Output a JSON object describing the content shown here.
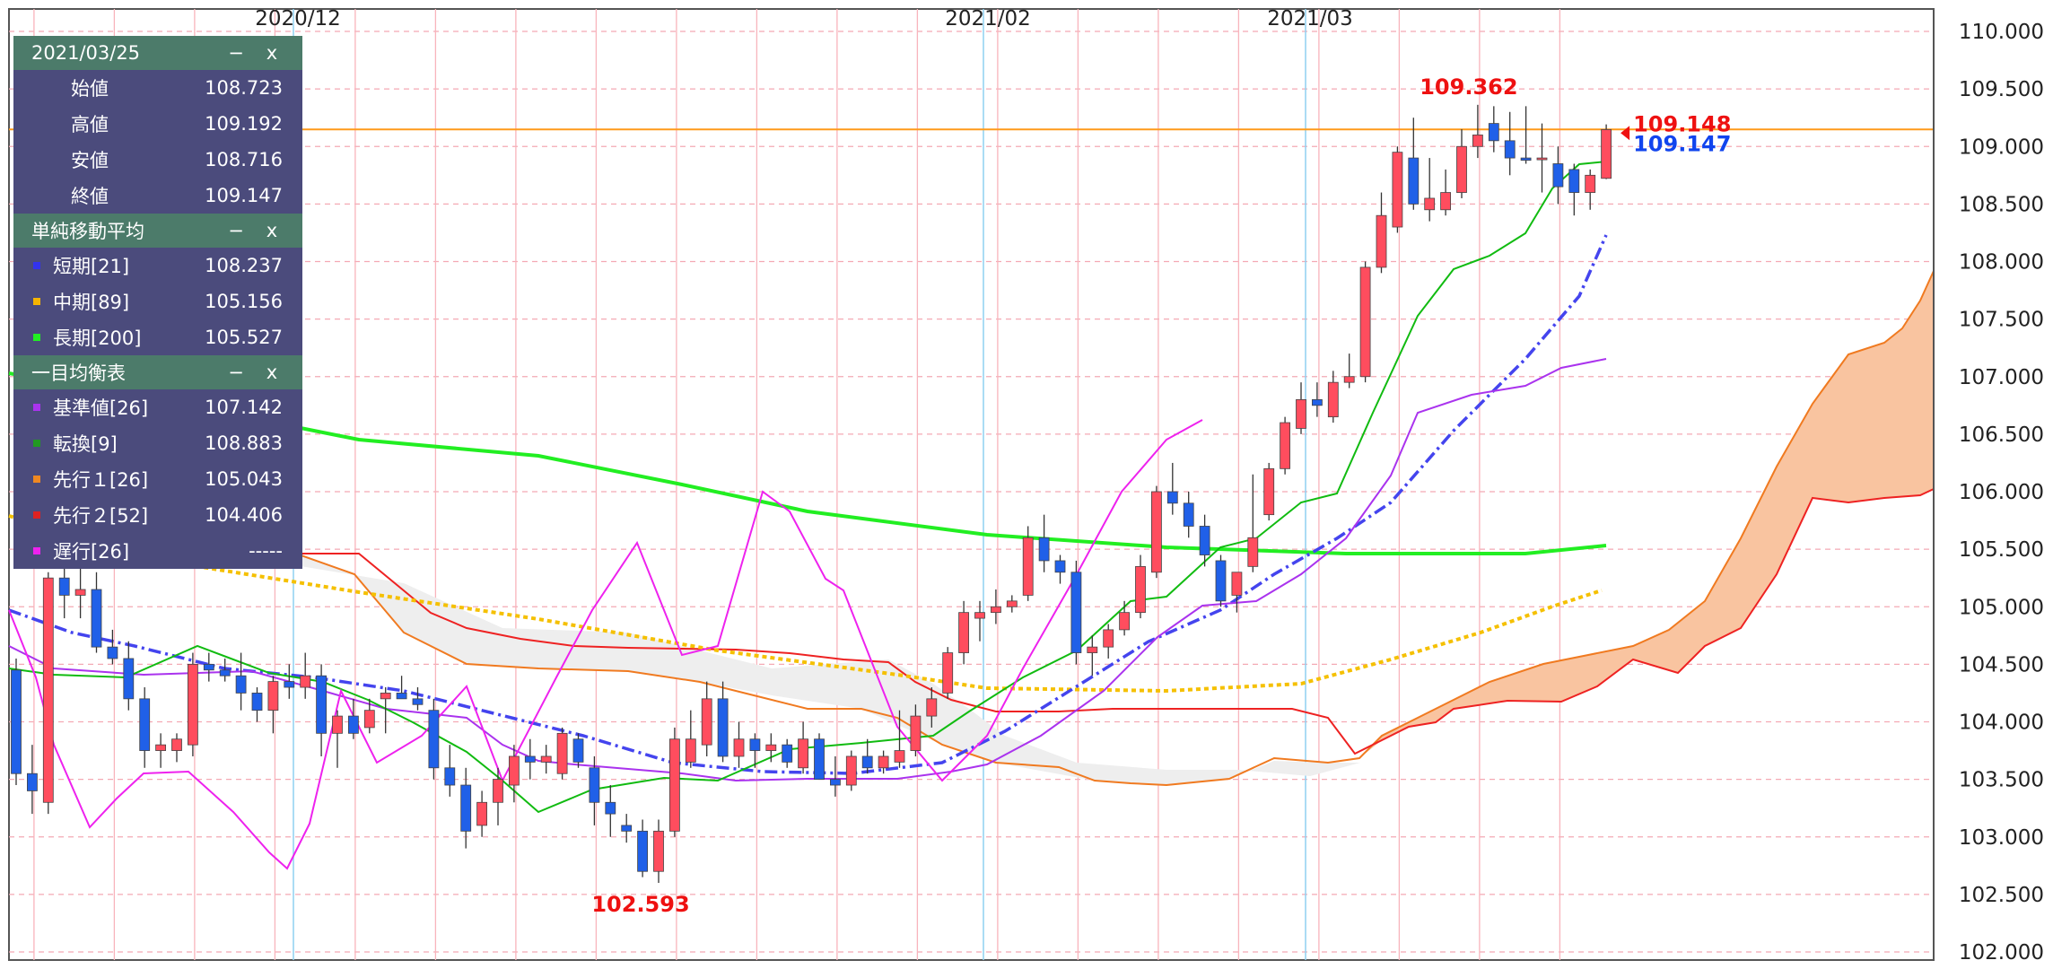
{
  "chart_data": {
    "type": "candlestick",
    "x_labels": [
      "2020/12",
      "2021/02",
      "2021/03"
    ],
    "y_ticks": [
      "110.000",
      "109.500",
      "109.000",
      "108.500",
      "108.000",
      "107.500",
      "107.000",
      "106.500",
      "106.000",
      "105.500",
      "105.000",
      "104.500",
      "104.000",
      "103.500",
      "103.000",
      "102.500",
      "102.000"
    ],
    "ylim": [
      102.0,
      110.0
    ],
    "current_price_label": "109.148",
    "current_price_label_2": "109.147",
    "high_annotation": "109.362",
    "low_annotation": "102.593",
    "hline_value": 109.148,
    "candles": [
      {
        "o": 104.45,
        "h": 104.55,
        "l": 103.45,
        "c": 103.55
      },
      {
        "o": 103.55,
        "h": 103.8,
        "l": 103.2,
        "c": 103.4
      },
      {
        "o": 103.3,
        "h": 105.3,
        "l": 103.2,
        "c": 105.25
      },
      {
        "o": 105.25,
        "h": 105.5,
        "l": 104.9,
        "c": 105.1
      },
      {
        "o": 105.1,
        "h": 105.4,
        "l": 104.9,
        "c": 105.15
      },
      {
        "o": 105.15,
        "h": 105.3,
        "l": 104.6,
        "c": 104.65
      },
      {
        "o": 104.65,
        "h": 104.8,
        "l": 104.5,
        "c": 104.55
      },
      {
        "o": 104.55,
        "h": 104.7,
        "l": 104.1,
        "c": 104.2
      },
      {
        "o": 104.2,
        "h": 104.3,
        "l": 103.6,
        "c": 103.75
      },
      {
        "o": 103.75,
        "h": 103.9,
        "l": 103.6,
        "c": 103.8
      },
      {
        "o": 103.75,
        "h": 103.9,
        "l": 103.65,
        "c": 103.85
      },
      {
        "o": 103.8,
        "h": 104.6,
        "l": 103.7,
        "c": 104.5
      },
      {
        "o": 104.5,
        "h": 104.6,
        "l": 104.35,
        "c": 104.45
      },
      {
        "o": 104.45,
        "h": 104.55,
        "l": 104.35,
        "c": 104.4
      },
      {
        "o": 104.4,
        "h": 104.6,
        "l": 104.1,
        "c": 104.25
      },
      {
        "o": 104.25,
        "h": 104.3,
        "l": 104.0,
        "c": 104.1
      },
      {
        "o": 104.1,
        "h": 104.4,
        "l": 103.9,
        "c": 104.35
      },
      {
        "o": 104.35,
        "h": 104.5,
        "l": 104.2,
        "c": 104.3
      },
      {
        "o": 104.3,
        "h": 104.6,
        "l": 104.2,
        "c": 104.4
      },
      {
        "o": 104.4,
        "h": 104.5,
        "l": 103.7,
        "c": 103.9
      },
      {
        "o": 103.9,
        "h": 104.1,
        "l": 103.6,
        "c": 104.05
      },
      {
        "o": 104.05,
        "h": 104.2,
        "l": 103.85,
        "c": 103.9
      },
      {
        "o": 103.95,
        "h": 104.2,
        "l": 103.9,
        "c": 104.1
      },
      {
        "o": 104.2,
        "h": 104.3,
        "l": 103.9,
        "c": 104.25
      },
      {
        "o": 104.25,
        "h": 104.4,
        "l": 104.2,
        "c": 104.2
      },
      {
        "o": 104.2,
        "h": 104.3,
        "l": 104.1,
        "c": 104.15
      },
      {
        "o": 104.1,
        "h": 104.2,
        "l": 103.5,
        "c": 103.6
      },
      {
        "o": 103.6,
        "h": 103.8,
        "l": 103.35,
        "c": 103.45
      },
      {
        "o": 103.45,
        "h": 103.6,
        "l": 102.9,
        "c": 103.05
      },
      {
        "o": 103.1,
        "h": 103.4,
        "l": 103.0,
        "c": 103.3
      },
      {
        "o": 103.3,
        "h": 103.6,
        "l": 103.1,
        "c": 103.5
      },
      {
        "o": 103.45,
        "h": 103.8,
        "l": 103.3,
        "c": 103.7
      },
      {
        "o": 103.7,
        "h": 103.85,
        "l": 103.5,
        "c": 103.65
      },
      {
        "o": 103.65,
        "h": 103.8,
        "l": 103.55,
        "c": 103.7
      },
      {
        "o": 103.55,
        "h": 103.95,
        "l": 103.5,
        "c": 103.9
      },
      {
        "o": 103.85,
        "h": 103.9,
        "l": 103.6,
        "c": 103.65
      },
      {
        "o": 103.6,
        "h": 103.7,
        "l": 103.1,
        "c": 103.3
      },
      {
        "o": 103.3,
        "h": 103.45,
        "l": 103.0,
        "c": 103.2
      },
      {
        "o": 103.1,
        "h": 103.2,
        "l": 102.95,
        "c": 103.05
      },
      {
        "o": 103.05,
        "h": 103.15,
        "l": 102.65,
        "c": 102.7
      },
      {
        "o": 102.7,
        "h": 103.15,
        "l": 102.6,
        "c": 103.05
      },
      {
        "o": 103.05,
        "h": 103.95,
        "l": 103.0,
        "c": 103.85
      },
      {
        "o": 103.65,
        "h": 104.1,
        "l": 103.6,
        "c": 103.85
      },
      {
        "o": 103.8,
        "h": 104.35,
        "l": 103.7,
        "c": 104.2
      },
      {
        "o": 104.2,
        "h": 104.35,
        "l": 103.65,
        "c": 103.7
      },
      {
        "o": 103.7,
        "h": 104.0,
        "l": 103.6,
        "c": 103.85
      },
      {
        "o": 103.85,
        "h": 103.9,
        "l": 103.6,
        "c": 103.75
      },
      {
        "o": 103.75,
        "h": 103.9,
        "l": 103.65,
        "c": 103.8
      },
      {
        "o": 103.8,
        "h": 103.85,
        "l": 103.6,
        "c": 103.65
      },
      {
        "o": 103.6,
        "h": 104.0,
        "l": 103.55,
        "c": 103.85
      },
      {
        "o": 103.85,
        "h": 103.9,
        "l": 103.5,
        "c": 103.5
      },
      {
        "o": 103.5,
        "h": 103.7,
        "l": 103.35,
        "c": 103.45
      },
      {
        "o": 103.45,
        "h": 103.75,
        "l": 103.4,
        "c": 103.7
      },
      {
        "o": 103.7,
        "h": 103.85,
        "l": 103.55,
        "c": 103.6
      },
      {
        "o": 103.6,
        "h": 103.75,
        "l": 103.55,
        "c": 103.7
      },
      {
        "o": 103.65,
        "h": 104.1,
        "l": 103.6,
        "c": 103.75
      },
      {
        "o": 103.75,
        "h": 104.15,
        "l": 103.7,
        "c": 104.05
      },
      {
        "o": 104.05,
        "h": 104.3,
        "l": 103.95,
        "c": 104.2
      },
      {
        "o": 104.25,
        "h": 104.65,
        "l": 104.2,
        "c": 104.6
      },
      {
        "o": 104.6,
        "h": 105.05,
        "l": 104.5,
        "c": 104.95
      },
      {
        "o": 104.9,
        "h": 105.05,
        "l": 104.7,
        "c": 104.95
      },
      {
        "o": 104.95,
        "h": 105.15,
        "l": 104.85,
        "c": 105.0
      },
      {
        "o": 105.0,
        "h": 105.1,
        "l": 104.95,
        "c": 105.05
      },
      {
        "o": 105.1,
        "h": 105.7,
        "l": 105.05,
        "c": 105.6
      },
      {
        "o": 105.6,
        "h": 105.8,
        "l": 105.3,
        "c": 105.4
      },
      {
        "o": 105.4,
        "h": 105.45,
        "l": 105.2,
        "c": 105.3
      },
      {
        "o": 105.3,
        "h": 105.4,
        "l": 104.5,
        "c": 104.6
      },
      {
        "o": 104.6,
        "h": 104.75,
        "l": 104.4,
        "c": 104.65
      },
      {
        "o": 104.65,
        "h": 104.85,
        "l": 104.55,
        "c": 104.8
      },
      {
        "o": 104.8,
        "h": 105.05,
        "l": 104.75,
        "c": 104.95
      },
      {
        "o": 104.95,
        "h": 105.45,
        "l": 104.9,
        "c": 105.35
      },
      {
        "o": 105.3,
        "h": 106.05,
        "l": 105.25,
        "c": 106.0
      },
      {
        "o": 106.0,
        "h": 106.25,
        "l": 105.8,
        "c": 105.9
      },
      {
        "o": 105.9,
        "h": 106.0,
        "l": 105.6,
        "c": 105.7
      },
      {
        "o": 105.7,
        "h": 105.8,
        "l": 105.35,
        "c": 105.45
      },
      {
        "o": 105.4,
        "h": 105.45,
        "l": 105.0,
        "c": 105.05
      },
      {
        "o": 105.1,
        "h": 105.3,
        "l": 104.95,
        "c": 105.3
      },
      {
        "o": 105.35,
        "h": 106.15,
        "l": 105.3,
        "c": 105.6
      },
      {
        "o": 105.8,
        "h": 106.25,
        "l": 105.75,
        "c": 106.2
      },
      {
        "o": 106.2,
        "h": 106.65,
        "l": 106.15,
        "c": 106.6
      },
      {
        "o": 106.55,
        "h": 106.95,
        "l": 106.5,
        "c": 106.8
      },
      {
        "o": 106.8,
        "h": 106.95,
        "l": 106.65,
        "c": 106.75
      },
      {
        "o": 106.65,
        "h": 107.05,
        "l": 106.6,
        "c": 106.95
      },
      {
        "o": 106.95,
        "h": 107.2,
        "l": 106.9,
        "c": 107.0
      },
      {
        "o": 107.0,
        "h": 108.0,
        "l": 106.95,
        "c": 107.95
      },
      {
        "o": 107.95,
        "h": 108.6,
        "l": 107.9,
        "c": 108.4
      },
      {
        "o": 108.3,
        "h": 109.0,
        "l": 108.25,
        "c": 108.95
      },
      {
        "o": 108.9,
        "h": 109.25,
        "l": 108.45,
        "c": 108.5
      },
      {
        "o": 108.45,
        "h": 108.9,
        "l": 108.35,
        "c": 108.55
      },
      {
        "o": 108.45,
        "h": 108.8,
        "l": 108.4,
        "c": 108.6
      },
      {
        "o": 108.6,
        "h": 109.15,
        "l": 108.55,
        "c": 109.0
      },
      {
        "o": 109.0,
        "h": 109.362,
        "l": 108.9,
        "c": 109.1
      },
      {
        "o": 109.2,
        "h": 109.35,
        "l": 108.95,
        "c": 109.05
      },
      {
        "o": 109.05,
        "h": 109.3,
        "l": 108.75,
        "c": 108.9
      },
      {
        "o": 108.9,
        "h": 109.35,
        "l": 108.85,
        "c": 108.88
      },
      {
        "o": 108.9,
        "h": 109.2,
        "l": 108.6,
        "c": 108.9
      },
      {
        "o": 108.85,
        "h": 109.0,
        "l": 108.5,
        "c": 108.65
      },
      {
        "o": 108.8,
        "h": 108.85,
        "l": 108.4,
        "c": 108.6
      },
      {
        "o": 108.6,
        "h": 108.8,
        "l": 108.45,
        "c": 108.75
      },
      {
        "o": 108.723,
        "h": 109.192,
        "l": 108.716,
        "c": 109.147
      }
    ]
  },
  "panel": {
    "date": "2021/03/25",
    "minimize": "−",
    "close": "x",
    "ohlc": [
      {
        "label": "始値",
        "value": "108.723"
      },
      {
        "label": "高値",
        "value": "109.192"
      },
      {
        "label": "安値",
        "value": "108.716"
      },
      {
        "label": "終値",
        "value": "109.147"
      }
    ],
    "sma_title": "単純移動平均",
    "sma": [
      {
        "label": "短期[21]",
        "value": "108.237",
        "color": "#3333ee"
      },
      {
        "label": "中期[89]",
        "value": "105.156",
        "color": "#f5b400"
      },
      {
        "label": "長期[200]",
        "value": "105.527",
        "color": "#22ee22"
      }
    ],
    "ichimoku_title": "一目均衡表",
    "ichimoku": [
      {
        "label": "基準値[26]",
        "value": "107.142",
        "color": "#aa33ee"
      },
      {
        "label": "転換[9]",
        "value": "108.883",
        "color": "#229922"
      },
      {
        "label": "先行１[26]",
        "value": "105.043",
        "color": "#ee8822"
      },
      {
        "label": "先行２[52]",
        "value": "104.406",
        "color": "#dd2222"
      },
      {
        "label": "遅行[26]",
        "value": "-----",
        "color": "#ee22ee"
      }
    ]
  },
  "colors": {
    "up": "#ff4d5e",
    "down": "#2060e8",
    "hline": "#ff9a1a",
    "cloud_bull": "#f9c4a0",
    "cloud_bear": "#eeeeee"
  }
}
